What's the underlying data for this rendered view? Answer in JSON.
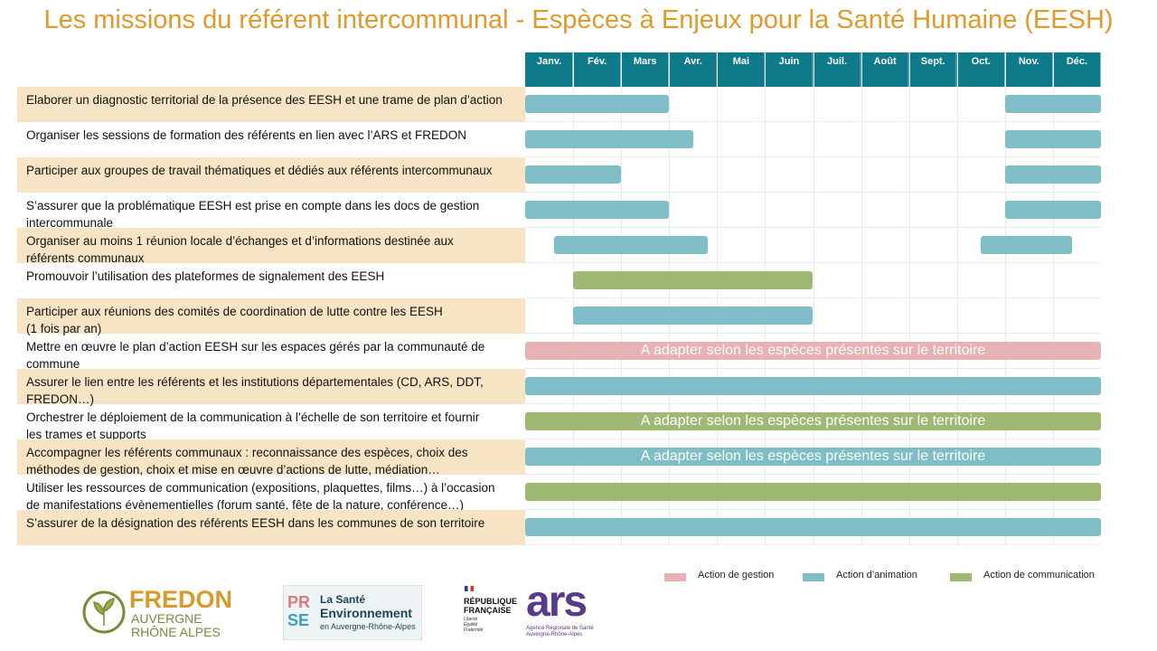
{
  "title": "Les missions du référent intercommunal - Espèces à Enjeux pour la Santé Humaine (EESH)",
  "months": [
    "Janv.",
    "Fév.",
    "Mars",
    "Avr.",
    "Mai",
    "Juin",
    "Juil.",
    "Août",
    "Sept.",
    "Oct.",
    "Nov.",
    "Déc."
  ],
  "tasks": [
    {
      "lines": [
        "Elaborer un diagnostic territorial de la présence des EESH et une trame de plan d’action"
      ],
      "bars": [
        {
          "start": 0,
          "end": 3,
          "color": "#7fbdc7"
        },
        {
          "start": 10,
          "end": 12,
          "color": "#7fbdc7"
        }
      ]
    },
    {
      "lines": [
        "Organiser les sessions de formation des référents en lien avec l’ARS et FREDON"
      ],
      "bars": [
        {
          "start": 0,
          "end": 3.5,
          "color": "#7fbdc7"
        },
        {
          "start": 10,
          "end": 12,
          "color": "#7fbdc7"
        }
      ]
    },
    {
      "lines": [
        "Participer aux groupes de travail thématiques et dédiés aux référents intercommunaux"
      ],
      "bars": [
        {
          "start": 0,
          "end": 2,
          "color": "#7fbdc7"
        },
        {
          "start": 10,
          "end": 12,
          "color": "#7fbdc7"
        }
      ]
    },
    {
      "lines": [
        "S’assurer que la problématique EESH est prise en compte dans les docs de gestion",
        "intercommunale"
      ],
      "bars": [
        {
          "start": 0,
          "end": 3,
          "color": "#7fbdc7"
        },
        {
          "start": 10,
          "end": 12,
          "color": "#7fbdc7"
        }
      ]
    },
    {
      "lines": [
        "Organiser au moins 1 réunion locale d’échanges et d’informations destinée aux",
        "référents communaux"
      ],
      "bars": [
        {
          "start": 0.6,
          "end": 3.8,
          "color": "#7fbdc7"
        },
        {
          "start": 9.5,
          "end": 11.4,
          "color": "#7fbdc7"
        }
      ]
    },
    {
      "lines": [
        "Promouvoir l’utilisation des plateformes de signalement des EESH"
      ],
      "bars": [
        {
          "start": 1,
          "end": 6,
          "color": "#9fb873"
        }
      ]
    },
    {
      "lines": [
        "Participer aux réunions des comités de coordination de lutte contre les EESH",
        "(1 fois par an)"
      ],
      "bars": [
        {
          "start": 1,
          "end": 6,
          "color": "#7fbdc7"
        }
      ]
    },
    {
      "lines": [
        "Mettre en œuvre le plan d’action EESH sur les espaces gérés par la communauté de",
        "commune"
      ],
      "bars": [
        {
          "start": 0,
          "end": 12,
          "color": "#e8b1b4",
          "label": "A adapter selon les espèces présentes sur le territoire"
        }
      ]
    },
    {
      "lines": [
        "Assurer le lien entre les référents et les institutions départementales (CD, ARS, DDT,",
        "FREDON…)"
      ],
      "bars": [
        {
          "start": 0,
          "end": 12,
          "color": "#7fbdc7"
        }
      ]
    },
    {
      "lines": [
        "Orchestrer le déploiement de la communication à l’échelle de son territoire et fournir",
        "les trames et supports"
      ],
      "bars": [
        {
          "start": 0,
          "end": 12,
          "color": "#9fb873",
          "label": "A adapter selon les espèces présentes sur le territoire"
        }
      ]
    },
    {
      "lines": [
        "Accompagner les référents communaux : reconnaissance des espèces, choix des",
        "méthodes de gestion, choix et mise en œuvre d’actions de lutte, médiation…"
      ],
      "bars": [
        {
          "start": 0,
          "end": 12,
          "color": "#7fbdc7",
          "label": "A adapter selon les espèces présentes sur le territoire"
        }
      ]
    },
    {
      "lines": [
        "Utiliser les ressources de communication (expositions, plaquettes, films…) à l’occasion",
        "de manifestations évènementielles (forum santé, fête de la nature, conférence…)"
      ],
      "bars": [
        {
          "start": 0,
          "end": 12,
          "color": "#9fb873"
        }
      ]
    },
    {
      "lines": [
        "S’assurer de la désignation des référents EESH dans les communes de son territoire"
      ],
      "bars": [
        {
          "start": 0,
          "end": 12,
          "color": "#7fbdc7"
        }
      ]
    }
  ],
  "legend": [
    {
      "label": "Action de gestion",
      "color": "#e8b1b4"
    },
    {
      "label": "Action d’animation",
      "color": "#7fbdc7"
    },
    {
      "label": "Action de communication",
      "color": "#9fb873"
    }
  ],
  "logos": {
    "fredon": [
      "FREDON",
      "AUVERGNE",
      "RHÔNE ALPES"
    ],
    "prse": [
      "PR",
      "SE",
      "La Santé",
      "Environnement",
      "en Auvergne-Rhône-Alpes"
    ],
    "republique": [
      "RÉPUBLIQUE",
      "FRANÇAISE",
      "Liberté",
      "Égalité",
      "Fraternité"
    ],
    "ars": [
      "ars",
      "Agence Régionale de Santé",
      "Auvergne-Rhône-Alpes"
    ]
  }
}
